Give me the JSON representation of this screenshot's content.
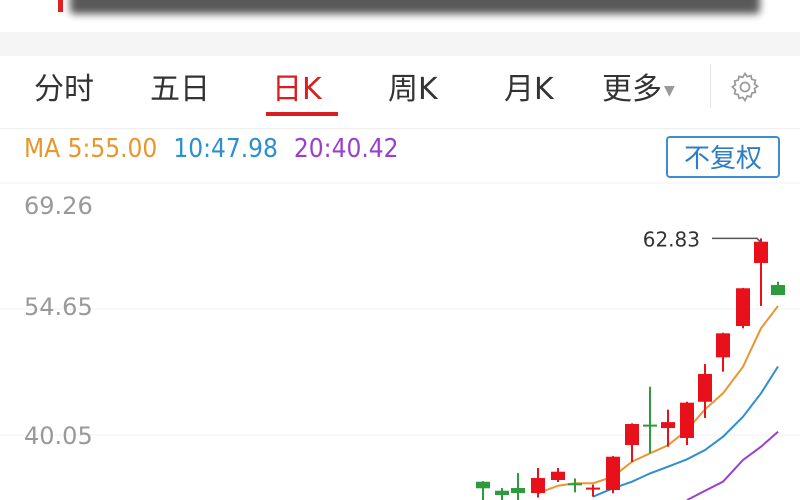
{
  "tabs": [
    {
      "label": "分时",
      "active": false
    },
    {
      "label": "五日",
      "active": false
    },
    {
      "label": "日K",
      "active": true
    },
    {
      "label": "周K",
      "active": false
    },
    {
      "label": "月K",
      "active": false
    },
    {
      "label": "更多",
      "active": false
    }
  ],
  "settings_icon": "gear-icon",
  "ma_legend": {
    "ma5": "MA 5:55.00",
    "ma10": "10:47.98",
    "ma20": "20:40.42"
  },
  "adjust_button": "不复权",
  "colors": {
    "up": "#e8101a",
    "down": "#2e9a3e",
    "ma5": "#e8962e",
    "ma10": "#2d8fd0",
    "ma20": "#9a3fd0",
    "accent": "#d81e1e"
  },
  "chart_data": {
    "type": "candlestick",
    "y_ticks": [
      "69.26",
      "54.65",
      "40.05"
    ],
    "max_label": "62.83",
    "candles": [
      {
        "open": 34.63,
        "close": 33.87,
        "high": 34.7,
        "low": 32.0
      },
      {
        "open": 33.59,
        "close": 33.09,
        "high": 33.9,
        "low": 32.3
      },
      {
        "open": 33.9,
        "close": 33.32,
        "high": 35.64,
        "low": 32.4
      },
      {
        "open": 33.32,
        "close": 35.06,
        "high": 36.22,
        "low": 32.8
      },
      {
        "open": 34.83,
        "close": 35.79,
        "high": 36.22,
        "low": 34.6
      },
      {
        "open": 34.45,
        "close": 34.38,
        "high": 35.0,
        "low": 33.4
      },
      {
        "open": 33.9,
        "close": 33.95,
        "high": 34.3,
        "low": 32.9
      },
      {
        "open": 33.67,
        "close": 37.53,
        "high": 37.6,
        "low": 33.3
      },
      {
        "open": 38.89,
        "close": 41.32,
        "high": 41.4,
        "low": 36.92
      },
      {
        "open": 41.25,
        "close": 41.17,
        "high": 45.64,
        "low": 37.96
      },
      {
        "open": 40.85,
        "close": 41.54,
        "high": 42.98,
        "low": 38.69
      },
      {
        "open": 39.7,
        "close": 43.79,
        "high": 43.9,
        "low": 38.89
      },
      {
        "open": 43.9,
        "close": 47.12,
        "high": 48.27,
        "low": 42.02
      },
      {
        "open": 49.05,
        "close": 51.83,
        "high": 51.9,
        "low": 47.38
      },
      {
        "open": 52.68,
        "close": 57.05,
        "high": 57.1,
        "low": 52.41
      },
      {
        "open": 59.98,
        "close": 62.45,
        "high": 62.83,
        "low": 55.0
      },
      {
        "open": 57.43,
        "close": 56.27,
        "high": 57.81,
        "low": 56.27
      }
    ],
    "ma5": [
      null,
      null,
      null,
      33.29,
      34.17,
      34.45,
      34.45,
      35.21,
      36.95,
      37.92,
      38.85,
      40.63,
      43.03,
      44.88,
      47.96,
      52.41,
      55.0
    ],
    "ma10": [
      null,
      null,
      null,
      null,
      null,
      null,
      32.9,
      33.87,
      34.63,
      35.6,
      36.37,
      37.23,
      38.31,
      39.85,
      42.17,
      44.88,
      47.98
    ],
    "ma20": [
      null,
      null,
      null,
      null,
      null,
      null,
      null,
      null,
      null,
      null,
      null,
      32.5,
      33.59,
      34.63,
      37.15,
      38.69,
      40.42
    ]
  }
}
